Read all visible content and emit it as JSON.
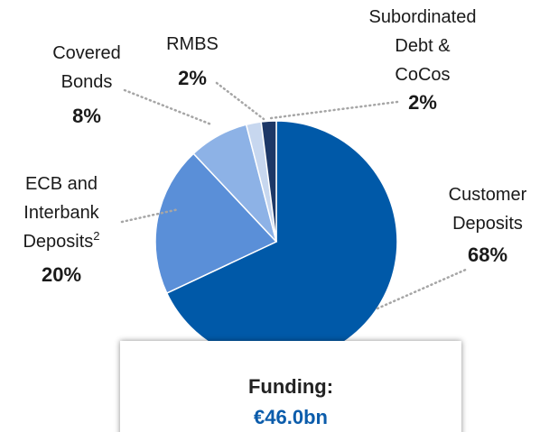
{
  "chart_data": {
    "type": "pie",
    "categories": [
      "Customer\nDeposits",
      "ECB and\nInterbank\nDeposits",
      "Covered\nBonds",
      "RMBS",
      "Subordinated\nDebt &\nCoCos"
    ],
    "footnotes": [
      null,
      "2",
      null,
      null,
      null
    ],
    "values": [
      68,
      20,
      8,
      2,
      2
    ],
    "value_labels": [
      "68%",
      "20%",
      "8%",
      "2%",
      "2%"
    ],
    "colors": [
      "#0059a8",
      "#5a8fd8",
      "#8db2e6",
      "#c7d7ef",
      "#1d3867"
    ],
    "annotation": {
      "title": "Funding:",
      "value": "€46.0bn"
    }
  }
}
